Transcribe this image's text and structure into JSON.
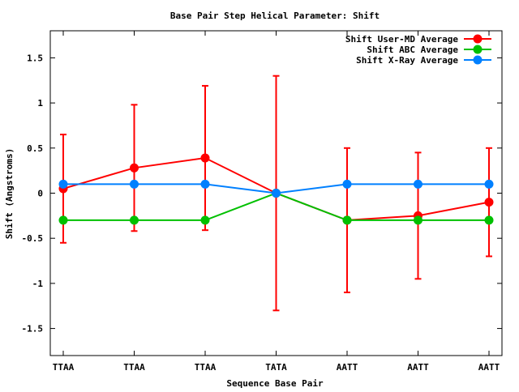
{
  "chart_data": {
    "type": "line",
    "title": "Base Pair Step Helical Parameter: Shift",
    "xlabel": "Sequence Base Pair",
    "ylabel": "Shift (Angstroms)",
    "categories": [
      "TTAA",
      "TTAA",
      "TTAA",
      "TATA",
      "AATT",
      "AATT",
      "AATT"
    ],
    "ylim": [
      -1.8,
      1.8
    ],
    "yticks": [
      -1.5,
      -1,
      -0.5,
      0,
      0.5,
      1,
      1.5
    ],
    "ytick_labels": [
      "-1.5",
      "-1",
      "-0.5",
      "0",
      "0.5",
      "1",
      "1.5"
    ],
    "grid": false,
    "legend_position": "top-right",
    "series": [
      {
        "name": "Shift User-MD Average",
        "color": "#ff0000",
        "values": [
          0.05,
          0.28,
          0.39,
          0.0,
          -0.3,
          -0.25,
          -0.1
        ],
        "error": [
          0.6,
          0.7,
          0.8,
          1.3,
          0.8,
          0.7,
          0.6
        ]
      },
      {
        "name": "Shift ABC Average",
        "color": "#00c000",
        "values": [
          -0.3,
          -0.3,
          -0.3,
          0.0,
          -0.3,
          -0.3,
          -0.3
        ]
      },
      {
        "name": "Shift X-Ray Average",
        "color": "#0080ff",
        "values": [
          0.1,
          0.1,
          0.1,
          0.0,
          0.1,
          0.1,
          0.1
        ]
      }
    ]
  }
}
